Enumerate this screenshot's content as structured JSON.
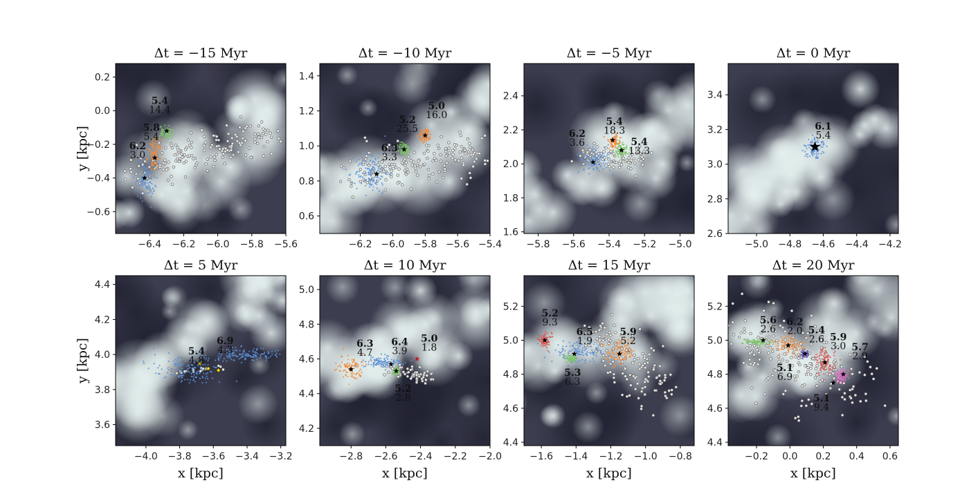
{
  "figure": {
    "xlabel": "x [kpc]",
    "ylabel": "y [kpc]"
  },
  "colors": {
    "blue": "#5b8fd6",
    "orange": "#f2893a",
    "green": "#7ec46a",
    "red": "#d9534f",
    "purple": "#5b4fb3",
    "pink": "#e46fc8",
    "gray_star": "#e8e8e8",
    "yellow_star": "#f5e11a",
    "bg_dark": "#3c3d4e",
    "bg_light": "#c7d9d9"
  },
  "chart_data": [
    {
      "type": "scatter",
      "title": "Δt = −15 Myr",
      "xlim": [
        -6.6,
        -5.6
      ],
      "ylim": [
        -0.73,
        0.28
      ],
      "xticks": [
        -6.4,
        -6.2,
        -6.0,
        -5.8,
        -5.6
      ],
      "yticks": [
        -0.6,
        -0.4,
        -0.2,
        0.0,
        0.2
      ],
      "xtick_labels": [
        "−6.4",
        "−6.2",
        "−6.0",
        "−5.8",
        "−5.6"
      ],
      "ytick_labels": [
        "−0.6",
        "−0.4",
        "−0.2",
        "0.0",
        "0.2"
      ],
      "clusters": [
        {
          "color": "blue",
          "x": -6.42,
          "y": -0.4,
          "sx": 0.03,
          "sy": 0.06
        },
        {
          "color": "orange",
          "x": -6.37,
          "y": -0.27,
          "sx": 0.02,
          "sy": 0.05
        },
        {
          "color": "green",
          "x": -6.3,
          "y": -0.13,
          "sx": 0.02,
          "sy": 0.02
        }
      ],
      "stars": [
        {
          "x": -6.43,
          "y": -0.4
        },
        {
          "x": -6.37,
          "y": -0.28
        },
        {
          "x": -6.3,
          "y": -0.12
        }
      ],
      "gray": {
        "x0": -6.5,
        "y0": -0.35,
        "x1": -5.6,
        "y1": -0.12,
        "spread": 0.1,
        "n": 180
      },
      "annotations": [
        {
          "bold": "5.4",
          "text": "14.4",
          "x": -6.34,
          "y": 0.04
        },
        {
          "bold": "5.8",
          "text": "5.4",
          "x": -6.39,
          "y": -0.12
        },
        {
          "bold": "6.2",
          "text": "3.0",
          "x": -6.47,
          "y": -0.23
        }
      ],
      "show_xlabel": false,
      "show_ylabel": true
    },
    {
      "type": "scatter",
      "title": "Δt = −10 Myr",
      "xlim": [
        -6.45,
        -5.4
      ],
      "ylim": [
        0.5,
        1.47
      ],
      "xticks": [
        -6.2,
        -6.0,
        -5.8,
        -5.6,
        -5.4
      ],
      "yticks": [
        0.6,
        0.8,
        1.0,
        1.2,
        1.4
      ],
      "xtick_labels": [
        "−6.2",
        "−6.0",
        "−5.8",
        "−5.6",
        "−5.4"
      ],
      "ytick_labels": [
        "0.6",
        "0.8",
        "1.0",
        "1.2",
        "1.4"
      ],
      "clusters": [
        {
          "color": "blue",
          "x": -6.13,
          "y": 0.85,
          "sx": 0.05,
          "sy": 0.06
        },
        {
          "color": "green",
          "x": -5.93,
          "y": 0.98,
          "sx": 0.02,
          "sy": 0.02
        },
        {
          "color": "orange",
          "x": -5.8,
          "y": 1.06,
          "sx": 0.02,
          "sy": 0.02
        }
      ],
      "stars": [
        {
          "x": -6.1,
          "y": 0.84
        },
        {
          "x": -5.93,
          "y": 0.98
        },
        {
          "x": -5.8,
          "y": 1.06
        }
      ],
      "gray": {
        "x0": -6.25,
        "y0": 0.85,
        "x1": -5.45,
        "y1": 0.95,
        "spread": 0.1,
        "n": 180
      },
      "annotations": [
        {
          "bold": "6.3",
          "text": "3.3",
          "x": -6.02,
          "y": 0.97
        },
        {
          "bold": "5.2",
          "text": "25.5",
          "x": -5.91,
          "y": 1.13
        },
        {
          "bold": "5.0",
          "text": "16.0",
          "x": -5.73,
          "y": 1.21
        }
      ],
      "show_xlabel": false,
      "show_ylabel": false
    },
    {
      "type": "scatter",
      "title": "Δt = −5 Myr",
      "xlim": [
        -5.88,
        -4.92
      ],
      "ylim": [
        1.59,
        2.59
      ],
      "xticks": [
        -5.8,
        -5.6,
        -5.4,
        -5.2,
        -5.0
      ],
      "yticks": [
        1.6,
        1.8,
        2.0,
        2.2,
        2.4
      ],
      "xtick_labels": [
        "−5.8",
        "−5.6",
        "−5.4",
        "−5.2",
        "−5.0"
      ],
      "ytick_labels": [
        "1.6",
        "1.8",
        "2.0",
        "2.2",
        "2.4"
      ],
      "clusters": [
        {
          "color": "blue",
          "x": -5.48,
          "y": 2.02,
          "sx": 0.04,
          "sy": 0.04
        },
        {
          "color": "orange",
          "x": -5.37,
          "y": 2.13,
          "sx": 0.02,
          "sy": 0.02
        },
        {
          "color": "green",
          "x": -5.33,
          "y": 2.08,
          "sx": 0.02,
          "sy": 0.02
        }
      ],
      "stars": [
        {
          "x": -5.49,
          "y": 2.01
        },
        {
          "x": -5.38,
          "y": 2.14
        },
        {
          "x": -5.33,
          "y": 2.08
        }
      ],
      "gray": {
        "x0": -5.55,
        "y0": 2.05,
        "x1": -5.2,
        "y1": 2.02,
        "spread": 0.05,
        "n": 90
      },
      "annotations": [
        {
          "bold": "6.2",
          "text": "3.6",
          "x": -5.58,
          "y": 2.16
        },
        {
          "bold": "5.4",
          "text": "18.3",
          "x": -5.37,
          "y": 2.23
        },
        {
          "bold": "5.4",
          "text": "13.3",
          "x": -5.23,
          "y": 2.11
        }
      ],
      "show_xlabel": false,
      "show_ylabel": false
    },
    {
      "type": "scatter",
      "title": "Δt = 0 Myr",
      "xlim": [
        -5.17,
        -4.15
      ],
      "ylim": [
        2.6,
        3.58
      ],
      "xticks": [
        -5.0,
        -4.8,
        -4.6,
        -4.4,
        -4.2
      ],
      "yticks": [
        2.6,
        2.8,
        3.0,
        3.2,
        3.4
      ],
      "xtick_labels": [
        "−5.0",
        "−4.8",
        "−4.6",
        "−4.4",
        "−4.2"
      ],
      "ytick_labels": [
        "2.6",
        "2.8",
        "3.0",
        "3.2",
        "3.4"
      ],
      "clusters": [
        {
          "color": "blue",
          "x": -4.65,
          "y": 3.09,
          "sx": 0.03,
          "sy": 0.03
        }
      ],
      "stars": [
        {
          "x": -4.65,
          "y": 3.1,
          "big": true
        }
      ],
      "gray": null,
      "annotations": [
        {
          "bold": "6.1",
          "text": "5.4",
          "x": -4.6,
          "y": 3.2
        }
      ],
      "show_xlabel": false,
      "show_ylabel": false
    },
    {
      "type": "scatter",
      "title": "Δt = 5 Myr",
      "xlim": [
        -4.18,
        -3.17
      ],
      "ylim": [
        3.48,
        4.45
      ],
      "xticks": [
        -4.0,
        -3.8,
        -3.6,
        -3.4,
        -3.2
      ],
      "yticks": [
        3.6,
        3.8,
        4.0,
        4.2,
        4.4
      ],
      "xtick_labels": [
        "−4.0",
        "−3.8",
        "−3.6",
        "−3.4",
        "−3.2"
      ],
      "ytick_labels": [
        "3.6",
        "3.8",
        "4.0",
        "4.2",
        "4.4"
      ],
      "clusters": [
        {
          "color": "blue",
          "x": -3.75,
          "y": 3.92,
          "sx": 0.1,
          "sy": 0.04
        },
        {
          "color": "blue",
          "x": -3.4,
          "y": 4.0,
          "sx": 0.1,
          "sy": 0.02
        }
      ],
      "stars": [
        {
          "x": -3.68,
          "y": 3.95,
          "yellow": true
        },
        {
          "x": -3.63,
          "y": 3.92,
          "yellow": true
        },
        {
          "x": -3.57,
          "y": 3.91,
          "yellow": true
        }
      ],
      "gray": {
        "x0": -3.85,
        "y0": 3.91,
        "x1": -3.55,
        "y1": 3.92,
        "spread": 0.02,
        "n": 20
      },
      "annotations": [
        {
          "bold": "5.4",
          "text": "4.8",
          "x": -3.7,
          "y": 4.0
        },
        {
          "bold": "6.9",
          "text": "4.3",
          "x": -3.53,
          "y": 4.06
        }
      ],
      "show_xlabel": true,
      "show_ylabel": true
    },
    {
      "type": "scatter",
      "title": "Δt = 10 Myr",
      "xlim": [
        -2.98,
        -2.0
      ],
      "ylim": [
        4.1,
        5.08
      ],
      "xticks": [
        -2.8,
        -2.6,
        -2.4,
        -2.2,
        -2.0
      ],
      "yticks": [
        4.2,
        4.4,
        4.6,
        4.8,
        5.0
      ],
      "xtick_labels": [
        "−2.8",
        "−2.6",
        "−2.4",
        "−2.2",
        "−2.0"
      ],
      "ytick_labels": [
        "4.2",
        "4.4",
        "4.6",
        "4.8",
        "5.0"
      ],
      "clusters": [
        {
          "color": "orange",
          "x": -2.8,
          "y": 4.55,
          "sx": 0.04,
          "sy": 0.03
        },
        {
          "color": "blue",
          "x": -2.62,
          "y": 4.58,
          "sx": 0.06,
          "sy": 0.02
        },
        {
          "color": "green",
          "x": -2.54,
          "y": 4.53,
          "sx": 0.01,
          "sy": 0.01
        }
      ],
      "stars": [
        {
          "x": -2.8,
          "y": 4.54
        },
        {
          "x": -2.57,
          "y": 4.57
        },
        {
          "x": -2.54,
          "y": 4.53
        },
        {
          "x": -2.42,
          "y": 4.6,
          "red": true
        }
      ],
      "gray": {
        "x0": -2.6,
        "y0": 4.55,
        "x1": -2.33,
        "y1": 4.5,
        "spread": 0.04,
        "n": 60
      },
      "annotations": [
        {
          "bold": "6.3",
          "text": "4.7",
          "x": -2.72,
          "y": 4.67
        },
        {
          "bold": "6.4",
          "text": "3.9",
          "x": -2.52,
          "y": 4.68
        },
        {
          "bold": "5.0",
          "text": "1.8",
          "x": -2.35,
          "y": 4.7
        },
        {
          "bold": "5.2",
          "text": "2.8",
          "x": -2.5,
          "y": 4.41
        }
      ],
      "show_xlabel": true,
      "show_ylabel": false
    },
    {
      "type": "scatter",
      "title": "Δt = 15 Myr",
      "xlim": [
        -1.7,
        -0.72
      ],
      "ylim": [
        4.38,
        5.38
      ],
      "xticks": [
        -1.6,
        -1.4,
        -1.2,
        -1.0,
        -0.8
      ],
      "yticks": [
        4.4,
        4.6,
        4.8,
        5.0,
        5.2
      ],
      "xtick_labels": [
        "−1.6",
        "−1.4",
        "−1.2",
        "−1.0",
        "−0.8"
      ],
      "ytick_labels": [
        "4.4",
        "4.6",
        "4.8",
        "5.0",
        "5.2"
      ],
      "clusters": [
        {
          "color": "red",
          "x": -1.58,
          "y": 5.0,
          "sx": 0.02,
          "sy": 0.02
        },
        {
          "color": "blue",
          "x": -1.38,
          "y": 4.93,
          "sx": 0.08,
          "sy": 0.03
        },
        {
          "color": "green",
          "x": -1.43,
          "y": 4.89,
          "sx": 0.02,
          "sy": 0.01
        },
        {
          "color": "orange",
          "x": -1.14,
          "y": 4.93,
          "sx": 0.04,
          "sy": 0.04
        }
      ],
      "stars": [
        {
          "x": -1.58,
          "y": 5.0
        },
        {
          "x": -1.41,
          "y": 4.92
        },
        {
          "x": -1.15,
          "y": 4.92
        }
      ],
      "gray": {
        "x0": -1.3,
        "y0": 5.05,
        "x1": -0.9,
        "y1": 4.7,
        "spread": 0.12,
        "n": 150
      },
      "annotations": [
        {
          "bold": "5.2",
          "text": "9.3",
          "x": -1.55,
          "y": 5.14
        },
        {
          "bold": "6.5",
          "text": "1.9",
          "x": -1.35,
          "y": 5.03
        },
        {
          "bold": "5.9",
          "text": "5.2",
          "x": -1.1,
          "y": 5.03
        },
        {
          "bold": "5.3",
          "text": "6.3",
          "x": -1.42,
          "y": 4.79
        }
      ],
      "show_xlabel": true,
      "show_ylabel": false
    },
    {
      "type": "scatter",
      "title": "Δt = 20 Myr",
      "xlim": [
        -0.37,
        0.65
      ],
      "ylim": [
        4.38,
        5.38
      ],
      "xticks": [
        -0.2,
        0.0,
        0.2,
        0.4,
        0.6
      ],
      "yticks": [
        4.4,
        4.6,
        4.8,
        5.0,
        5.2
      ],
      "xtick_labels": [
        "−0.2",
        "0.0",
        "0.2",
        "0.4",
        "0.6"
      ],
      "ytick_labels": [
        "4.4",
        "4.6",
        "4.8",
        "5.0",
        "5.2"
      ],
      "clusters": [
        {
          "color": "green",
          "x": -0.2,
          "y": 4.99,
          "sx": 0.04,
          "sy": 0.01
        },
        {
          "color": "orange",
          "x": 0.0,
          "y": 4.97,
          "sx": 0.05,
          "sy": 0.03
        },
        {
          "color": "purple",
          "x": 0.09,
          "y": 4.92,
          "sx": 0.01,
          "sy": 0.01
        },
        {
          "color": "red",
          "x": 0.21,
          "y": 4.87,
          "sx": 0.03,
          "sy": 0.04
        },
        {
          "color": "pink",
          "x": 0.31,
          "y": 4.79,
          "sx": 0.02,
          "sy": 0.02
        }
      ],
      "stars": [
        {
          "x": -0.16,
          "y": 5.0
        },
        {
          "x": -0.01,
          "y": 4.97
        },
        {
          "x": 0.09,
          "y": 4.92
        },
        {
          "x": 0.21,
          "y": 4.87
        },
        {
          "x": 0.32,
          "y": 4.8
        },
        {
          "x": 0.26,
          "y": 4.75
        }
      ],
      "gray": {
        "x0": -0.25,
        "y0": 5.05,
        "x1": 0.4,
        "y1": 4.72,
        "spread": 0.17,
        "n": 220
      },
      "annotations": [
        {
          "bold": "5.6",
          "text": "2.6",
          "x": -0.13,
          "y": 5.1
        },
        {
          "bold": "6.2",
          "text": "2.0",
          "x": 0.03,
          "y": 5.09
        },
        {
          "bold": "5.4",
          "text": "2.6",
          "x": 0.16,
          "y": 5.04
        },
        {
          "bold": "5.9",
          "text": "3.0",
          "x": 0.29,
          "y": 5.0
        },
        {
          "bold": "5.7",
          "text": "2.9",
          "x": 0.42,
          "y": 4.94
        },
        {
          "bold": "5.1",
          "text": "6.9",
          "x": -0.03,
          "y": 4.82
        },
        {
          "bold": "5.1",
          "text": "9.4",
          "x": 0.19,
          "y": 4.64
        }
      ],
      "show_xlabel": true,
      "show_ylabel": false
    }
  ]
}
